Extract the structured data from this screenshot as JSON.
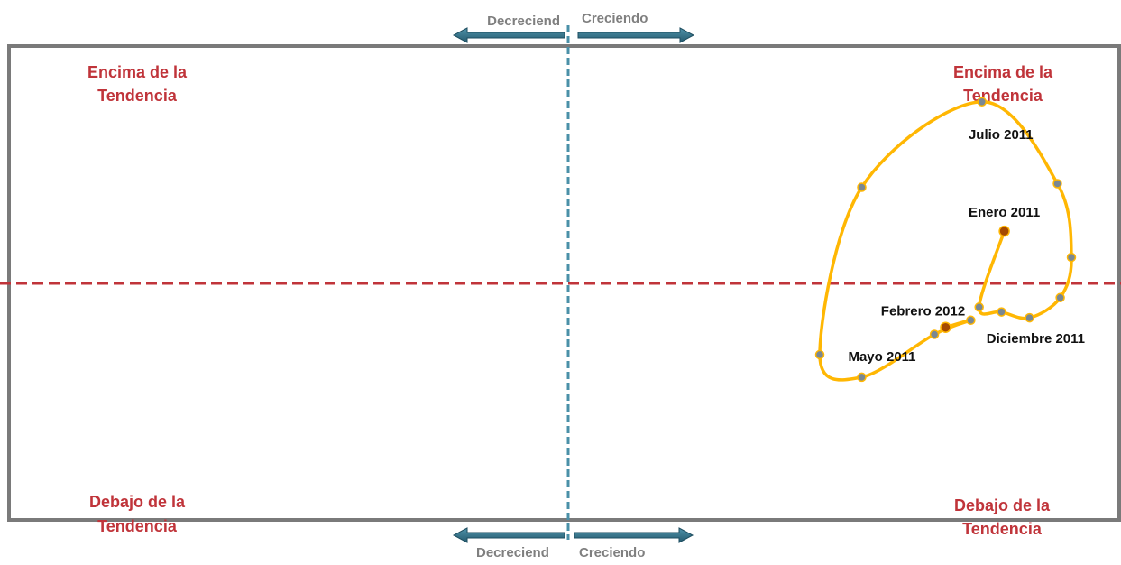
{
  "colors": {
    "frame": "#7a7a7a",
    "horizontal_trend_line": "#c0343a",
    "vertical_divider": "#4a90a8",
    "arrow_fill": "#2e6f86",
    "arrow_stroke": "#1e4e60",
    "quad_label": "#c0343a",
    "arrow_label": "#7f7f7f",
    "trajectory": "#ffb703",
    "point": "#7a8893",
    "highlight_point": "#a64a00",
    "point_label": "#111111"
  },
  "quadrants": {
    "top_left": [
      "Encima de la",
      "Tendencia"
    ],
    "top_right": [
      "Encima de la",
      "Tendencia"
    ],
    "bottom_left": [
      "Debajo de la",
      "Tendencia"
    ],
    "bottom_right": [
      "Debajo de la",
      "Tendencia"
    ]
  },
  "arrows": {
    "top_left_label": "Decreciend",
    "top_right_label": "Creciendo",
    "bottom_left_label": "Decreciend",
    "bottom_right_label": "Creciendo"
  },
  "chart_data": {
    "type": "scatter",
    "title": "",
    "xlabel": "",
    "ylabel": "",
    "xlim": [
      -1,
      1
    ],
    "ylim": [
      -1,
      1
    ],
    "grid": false,
    "series": [
      {
        "connected": true,
        "smooth": true,
        "points": [
          {
            "x": 0.78,
            "y": 0.22,
            "label": "Enero 2011",
            "highlight": true
          },
          {
            "x": 0.735,
            "y": -0.1,
            "label": ""
          },
          {
            "x": 0.775,
            "y": -0.12,
            "label": ""
          },
          {
            "x": 0.825,
            "y": -0.145,
            "label": ""
          },
          {
            "x": 0.88,
            "y": -0.06,
            "label": ""
          },
          {
            "x": 0.9,
            "y": 0.11,
            "label": ""
          },
          {
            "x": 0.875,
            "y": 0.42,
            "label": ""
          },
          {
            "x": 0.74,
            "y": 0.765,
            "label": "Julio 2011"
          },
          {
            "x": 0.525,
            "y": 0.405,
            "label": ""
          },
          {
            "x": 0.45,
            "y": -0.3,
            "label": "Mayo 2011"
          },
          {
            "x": 0.525,
            "y": -0.395,
            "label": ""
          },
          {
            "x": 0.655,
            "y": -0.215,
            "label": ""
          },
          {
            "x": 0.72,
            "y": -0.155,
            "label": "Diciembre 2011"
          },
          {
            "x": 0.675,
            "y": -0.185,
            "label": "Febrero 2012",
            "highlight": true
          }
        ]
      }
    ]
  }
}
